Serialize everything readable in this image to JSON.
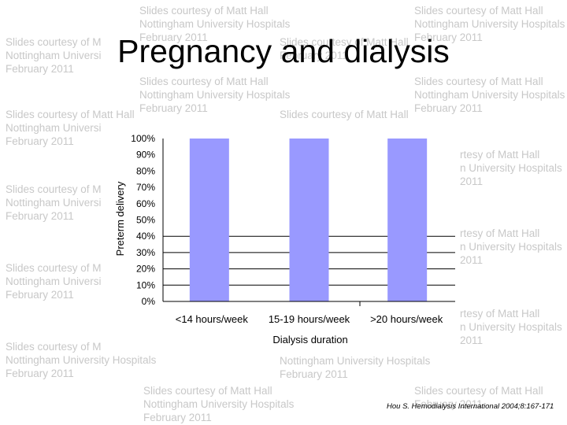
{
  "slide": {
    "title": "Pregnancy and dialysis",
    "citation": "Hou S. Hemodialysis International 2004;8:167-171"
  },
  "watermark": {
    "blocks": [
      [
        "Slides courtesy of Matt Hall",
        "Nottingham University Hospitals",
        "February 2011"
      ],
      [
        "Slides courtesy of Matt Hall",
        "Nottingham University Hospitals",
        "February 2011"
      ],
      [
        "Slides courtesy of M",
        "Nottingham Universi",
        "February 2011"
      ],
      [
        "Slides courtesy of Matt Hall",
        "February 2011"
      ],
      [
        "Slides courtesy of Matt Hall",
        "Nottingham University Hospitals",
        "February 2011"
      ],
      [
        "Slides courtesy of Matt Hall",
        "Nottingham University Hospitals",
        "February 2011"
      ],
      [
        "Slides courtesy of Matt Hall",
        "Nottingham Universi",
        "February 2011"
      ],
      [
        "Slides courtesy of Matt Hall"
      ],
      [
        "rtesy of Matt Hall",
        "n University Hospitals",
        "2011"
      ],
      [
        "Slides courtesy of M",
        "Nottingham Universi",
        "February 2011"
      ],
      [
        "rtesy of Matt Hall",
        "n University Hospitals",
        "2011"
      ],
      [
        "Slides courtesy of M",
        "Nottingham Universi",
        "February 2011"
      ],
      [
        "rtesy of Matt Hall",
        "n University Hospitals",
        "2011"
      ],
      [
        "Slides courtesy of M",
        "Nottingham University Hospitals",
        "February 2011"
      ],
      [
        "Nottingham University Hospitals",
        "February 2011"
      ],
      [
        "Slides courtesy of Matt Hall",
        "Nottingham University Hospitals",
        "February 2011"
      ],
      [
        "Slides courtesy of Matt Hall",
        "February 2011"
      ]
    ]
  },
  "chart_data": {
    "type": "bar",
    "categories": [
      "<14 hours/week",
      "15-19 hours/week",
      ">20 hours/week"
    ],
    "values": [
      100,
      100,
      100
    ],
    "ylabel": "Preterm delivery",
    "xlabel": "Dialysis duration",
    "yticks": [
      "0%",
      "10%",
      "20%",
      "30%",
      "40%",
      "50%",
      "60%",
      "70%",
      "80%",
      "90%",
      "100%"
    ],
    "ylim": [
      0,
      100
    ],
    "gridlines_at": [
      10,
      20,
      30,
      40
    ],
    "bar_color": "#9999ff",
    "legend": "none"
  }
}
